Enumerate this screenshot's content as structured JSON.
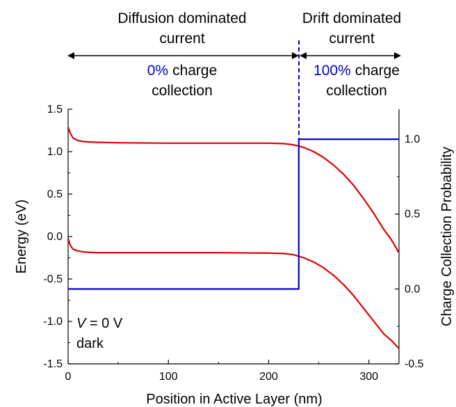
{
  "annotations": {
    "diffusion_title": [
      "Diffusion dominated",
      "current"
    ],
    "drift_title": [
      "Drift dominated",
      "current"
    ],
    "diffusion_pct": "0%",
    "diffusion_cc": [
      "charge",
      "collection"
    ],
    "drift_pct": "100%",
    "drift_cc": [
      "charge",
      "collection"
    ],
    "condition_var": "V",
    "condition_rest": " = 0 V",
    "condition_light": "dark"
  },
  "colors": {
    "bands": "#dd0000",
    "probability": "#0000cc",
    "axis": "#000000"
  },
  "chart_data": {
    "type": "line",
    "xlabel": "Position in Active Layer (nm)",
    "ylabel": "Energy (eV)",
    "y2label": "Charge Collection Probability",
    "xlim": [
      0,
      330
    ],
    "ylim": [
      -1.5,
      1.5
    ],
    "y2lim": [
      -0.5,
      1.2
    ],
    "x_ticks": [
      0,
      100,
      200,
      300
    ],
    "y_ticks": [
      -1.5,
      -1.0,
      -0.5,
      0.0,
      0.5,
      1.0,
      1.5
    ],
    "y_tick_labels": [
      "-1.5",
      "-1.0",
      "-0.5",
      "0.0",
      "0.5",
      "1.0",
      "1.5"
    ],
    "y2_ticks": [
      -0.5,
      0.0,
      0.5,
      1.0
    ],
    "y2_tick_labels": [
      "-0.5",
      "0.0",
      "0.5",
      "1.0"
    ],
    "divider_x": 230,
    "series": [
      {
        "axis": "left",
        "x": [
          0,
          2,
          5,
          10,
          15,
          20,
          30,
          50,
          100,
          150,
          200,
          215,
          225,
          235,
          245,
          255,
          265,
          275,
          285,
          295,
          305,
          315,
          322,
          330
        ],
        "values": [
          1.29,
          1.22,
          1.16,
          1.13,
          1.12,
          1.115,
          1.11,
          1.105,
          1.1,
          1.1,
          1.1,
          1.095,
          1.08,
          1.05,
          1.0,
          0.93,
          0.84,
          0.73,
          0.6,
          0.44,
          0.27,
          0.08,
          -0.03,
          -0.19
        ]
      },
      {
        "axis": "left",
        "x": [
          0,
          2,
          5,
          10,
          15,
          20,
          30,
          50,
          100,
          150,
          200,
          215,
          225,
          235,
          245,
          255,
          265,
          275,
          285,
          295,
          305,
          315,
          322,
          330
        ],
        "values": [
          -0.02,
          -0.1,
          -0.15,
          -0.17,
          -0.18,
          -0.185,
          -0.19,
          -0.19,
          -0.19,
          -0.19,
          -0.195,
          -0.2,
          -0.215,
          -0.25,
          -0.3,
          -0.37,
          -0.46,
          -0.57,
          -0.7,
          -0.85,
          -1.0,
          -1.15,
          -1.22,
          -1.32
        ]
      },
      {
        "axis": "right",
        "x": [
          0,
          230,
          230,
          330
        ],
        "values": [
          0,
          0,
          1,
          1
        ]
      }
    ]
  }
}
